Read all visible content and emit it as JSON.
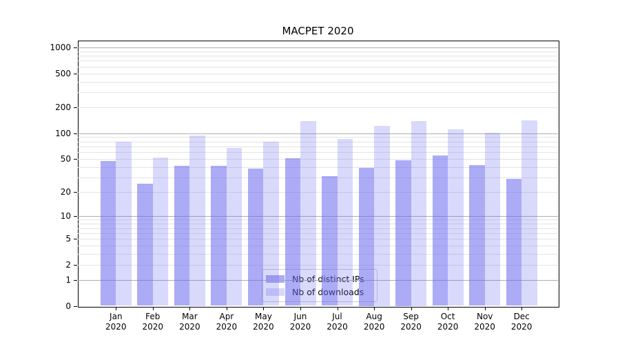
{
  "colors": {
    "background": "#ffffff",
    "bar_distinct_ips": "rgba(102,102,238,0.55)",
    "bar_downloads": "rgba(102,102,238,0.25)",
    "grid_major": "#adadad",
    "grid_minor": "#e4e4e4",
    "axis": "#000000",
    "legend_border": "#cccccc",
    "text": "#000000"
  },
  "chart_data": {
    "type": "bar",
    "title": "MACPET 2020",
    "xlabel": "",
    "ylabel": "",
    "yscale": "symlog",
    "ylim": [
      0,
      1200
    ],
    "grid": true,
    "legend_position": "lower center",
    "categories": [
      "Jan",
      "Feb",
      "Mar",
      "Apr",
      "May",
      "Jun",
      "Jul",
      "Aug",
      "Sep",
      "Oct",
      "Nov",
      "Dec"
    ],
    "category_year": "2020",
    "y_ticks": [
      0,
      1,
      2,
      5,
      10,
      20,
      50,
      100,
      200,
      500,
      1000
    ],
    "y_major_gridlines": [
      1,
      10,
      100,
      1000
    ],
    "y_minor_gridlines": [
      2,
      3,
      4,
      5,
      6,
      7,
      8,
      9,
      20,
      30,
      40,
      50,
      60,
      70,
      80,
      90,
      200,
      300,
      400,
      500,
      600,
      700,
      800,
      900
    ],
    "series": [
      {
        "name": "Nb of distinct IPs",
        "values": [
          47,
          25,
          41,
          41,
          38,
          51,
          31,
          39,
          48,
          55,
          42,
          29
        ]
      },
      {
        "name": "Nb of downloads",
        "values": [
          80,
          52,
          94,
          67,
          80,
          139,
          86,
          123,
          140,
          112,
          102,
          141
        ]
      }
    ]
  }
}
